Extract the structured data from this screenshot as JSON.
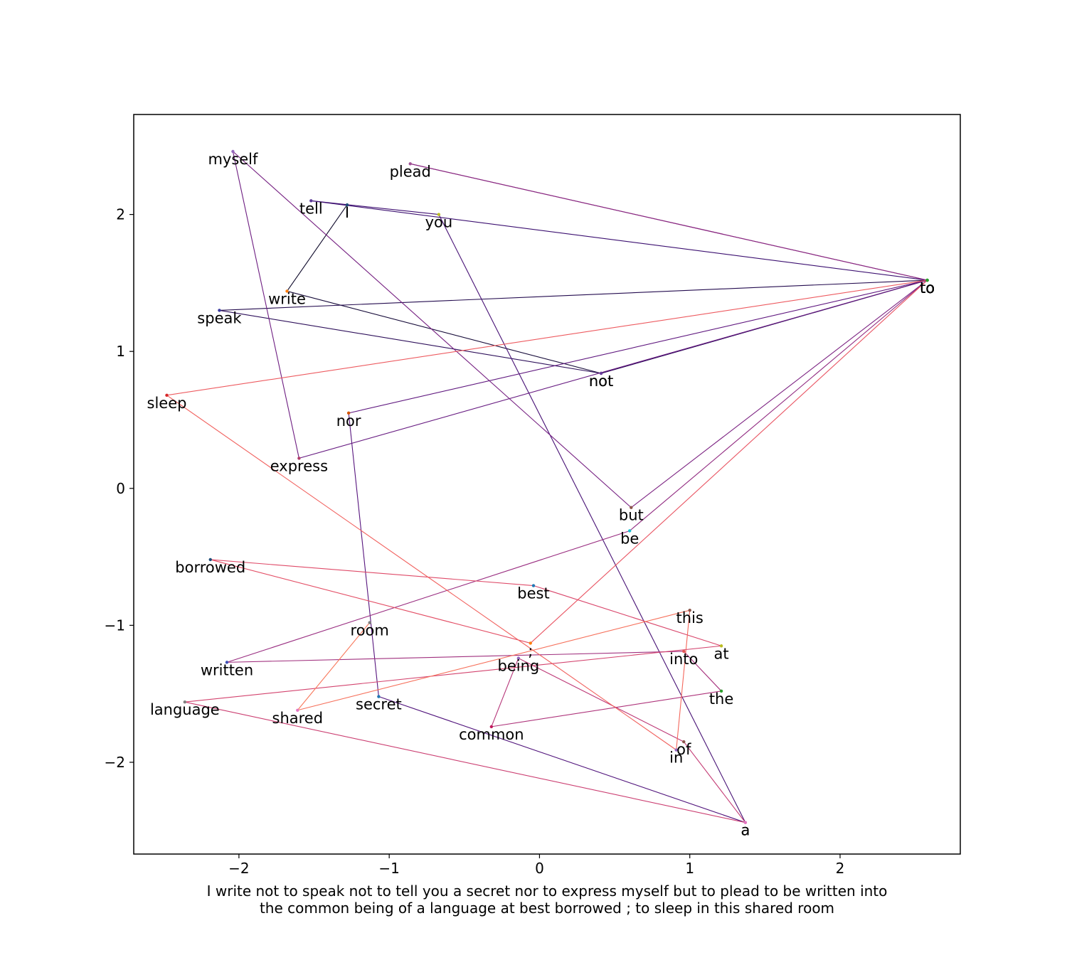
{
  "chart_data": {
    "type": "line",
    "title": "",
    "xlabel": "",
    "ylabel": "",
    "xlim": [
      -2.7,
      2.8
    ],
    "ylim": [
      -2.67,
      2.73
    ],
    "x_ticks": [
      -2,
      -1,
      0,
      1,
      2
    ],
    "y_ticks": [
      -2,
      -1,
      0,
      1,
      2
    ],
    "x_tick_labels": [
      "−2",
      "−1",
      "0",
      "1",
      "2"
    ],
    "y_tick_labels": [
      "−2",
      "−1",
      "0",
      "1",
      "2"
    ],
    "grid": false,
    "caption_lines": [
      "I write not to speak not to tell you a secret nor to express myself but to plead to be written into",
      "the common being of a language at best borrowed ; to sleep in this shared room"
    ],
    "words": [
      {
        "word": "I",
        "x": -1.28,
        "y": 2.07,
        "color": "#1f4e79"
      },
      {
        "word": "write",
        "x": -1.68,
        "y": 1.44,
        "color": "#ff7f0e"
      },
      {
        "word": "not",
        "x": 0.41,
        "y": 0.84,
        "color": "#6a3d9a"
      },
      {
        "word": "to",
        "x": 2.58,
        "y": 1.52,
        "color": "#2ca02c"
      },
      {
        "word": "speak",
        "x": -2.13,
        "y": 1.3,
        "color": "#3a3aa0"
      },
      {
        "word": "not",
        "x": 0.41,
        "y": 0.84,
        "color": "#6a3d9a"
      },
      {
        "word": "to",
        "x": 2.58,
        "y": 1.52,
        "color": "#2ca02c"
      },
      {
        "word": "tell",
        "x": -1.52,
        "y": 2.1,
        "color": "#5e3c99"
      },
      {
        "word": "you",
        "x": -0.67,
        "y": 2.0,
        "color": "#bcbd22"
      },
      {
        "word": "a",
        "x": 1.37,
        "y": -2.44,
        "color": "#e377c2"
      },
      {
        "word": "secret",
        "x": -1.07,
        "y": -1.52,
        "color": "#1f77b4"
      },
      {
        "word": "nor",
        "x": -1.27,
        "y": 0.55,
        "color": "#d35400"
      },
      {
        "word": "to",
        "x": 2.58,
        "y": 1.52,
        "color": "#2ca02c"
      },
      {
        "word": "express",
        "x": -1.6,
        "y": 0.22,
        "color": "#b03a6a"
      },
      {
        "word": "myself",
        "x": -2.04,
        "y": 2.46,
        "color": "#9467bd"
      },
      {
        "word": "but",
        "x": 0.61,
        "y": -0.14,
        "color": "#8c564b"
      },
      {
        "word": "to",
        "x": 2.58,
        "y": 1.52,
        "color": "#2ca02c"
      },
      {
        "word": "plead",
        "x": -0.86,
        "y": 2.37,
        "color": "#a05195"
      },
      {
        "word": "to",
        "x": 2.58,
        "y": 1.52,
        "color": "#2ca02c"
      },
      {
        "word": "be",
        "x": 0.6,
        "y": -0.31,
        "color": "#17becf"
      },
      {
        "word": "written",
        "x": -2.08,
        "y": -1.27,
        "color": "#3f51b5"
      },
      {
        "word": "into",
        "x": 0.96,
        "y": -1.19,
        "color": "#e45756"
      },
      {
        "word": "the",
        "x": 1.21,
        "y": -1.48,
        "color": "#2ca02c"
      },
      {
        "word": "common",
        "x": -0.32,
        "y": -1.74,
        "color": "#c2185b"
      },
      {
        "word": "being",
        "x": -0.14,
        "y": -1.24,
        "color": "#9467bd"
      },
      {
        "word": "of",
        "x": 0.96,
        "y": -1.85,
        "color": "#8c564b"
      },
      {
        "word": "a",
        "x": 1.37,
        "y": -2.44,
        "color": "#e377c2"
      },
      {
        "word": "language",
        "x": -2.36,
        "y": -1.56,
        "color": "#7f7f7f"
      },
      {
        "word": "at",
        "x": 1.21,
        "y": -1.15,
        "color": "#bcbd22"
      },
      {
        "word": "best",
        "x": -0.04,
        "y": -0.71,
        "color": "#1f77b4"
      },
      {
        "word": "borrowed",
        "x": -2.19,
        "y": -0.52,
        "color": "#1f4e79"
      },
      {
        "word": ";",
        "x": -0.06,
        "y": -1.13,
        "color": "#ff7f0e"
      },
      {
        "word": "to",
        "x": 2.58,
        "y": 1.52,
        "color": "#2ca02c"
      },
      {
        "word": "sleep",
        "x": -2.48,
        "y": 0.68,
        "color": "#d62728"
      },
      {
        "word": "in",
        "x": 0.91,
        "y": -1.91,
        "color": "#9467bd"
      },
      {
        "word": "this",
        "x": 1.0,
        "y": -0.89,
        "color": "#8c564b"
      },
      {
        "word": "shared",
        "x": -1.61,
        "y": -1.62,
        "color": "#e377c2"
      },
      {
        "word": "room",
        "x": -1.13,
        "y": -0.98,
        "color": "#7f7f7f"
      }
    ],
    "segment_colors": [
      "#0d0829",
      "#160b39",
      "#1d0f47",
      "#240c4f",
      "#2d0f5a",
      "#340f60",
      "#3b0f70",
      "#3f0f72",
      "#471175",
      "#4f127b",
      "#57157e",
      "#5f187f",
      "#661a80",
      "#6d1d81",
      "#751f81",
      "#7c2382",
      "#832681",
      "#8a2981",
      "#912b81",
      "#992d80",
      "#a0307e",
      "#a7317d",
      "#ae347b",
      "#b63679",
      "#bd3977",
      "#c43c75",
      "#cb3e71",
      "#d3436e",
      "#d9466b",
      "#df4a68",
      "#e34e65",
      "#e95462",
      "#ed5a5f",
      "#f1605d",
      "#f4675c",
      "#f6705b",
      "#f8785b"
    ]
  }
}
